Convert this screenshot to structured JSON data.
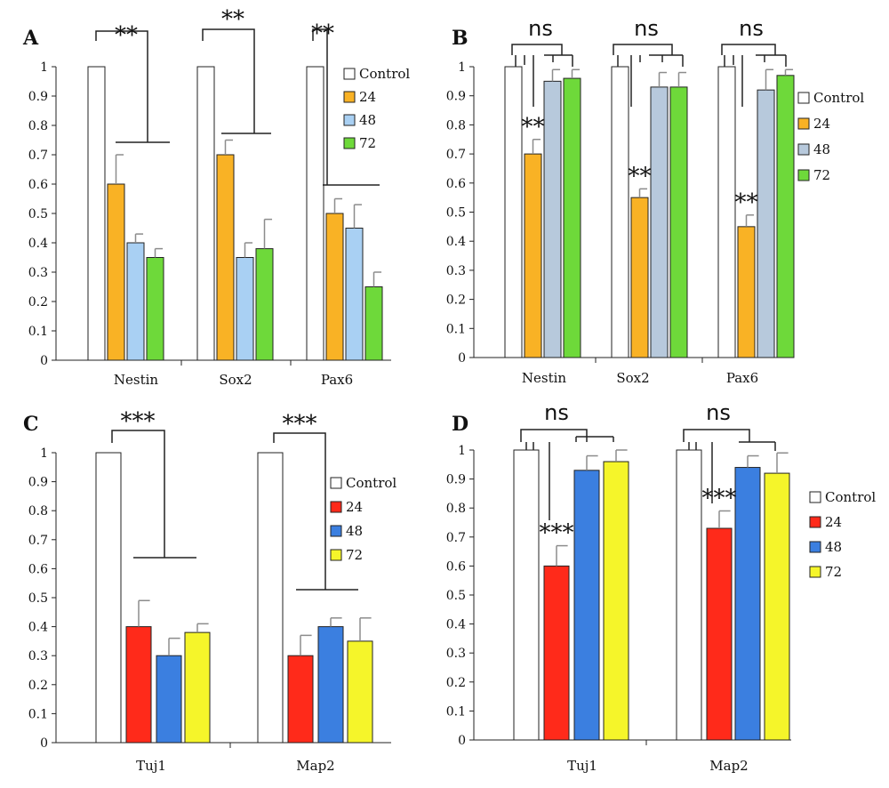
{
  "colors": {
    "control": "#ffffff",
    "AB_24": "#f9b225",
    "AB_48": "#a9d0f3",
    "B_48": "#b7c9dc",
    "AB_72": "#6ed93a",
    "CD_24": "#ff2a1a",
    "CD_48": "#3b7fe0",
    "CD_72": "#f5f52a",
    "bar_outline": "#222222",
    "error_bar": "#8c8c8c"
  },
  "chart_data": [
    {
      "panel": "A",
      "type": "bar",
      "categories": [
        "Nestin",
        "Sox2",
        "Pax6"
      ],
      "ylim": [
        0,
        1
      ],
      "yticks": [
        "0",
        "0.1",
        "0.2",
        "0.3",
        "0.4",
        "0.5",
        "0.6",
        "0.7",
        "0.8",
        "0.9",
        "1"
      ],
      "legend_position": "top-right",
      "series": [
        {
          "name": "Control",
          "values": [
            1.0,
            1.0,
            1.0
          ],
          "errors": [
            0,
            0,
            0
          ]
        },
        {
          "name": "24",
          "values": [
            0.6,
            0.7,
            0.5
          ],
          "errors": [
            0.1,
            0.05,
            0.05
          ]
        },
        {
          "name": "48",
          "values": [
            0.4,
            0.35,
            0.45
          ],
          "errors": [
            0.03,
            0.05,
            0.08
          ]
        },
        {
          "name": "72",
          "values": [
            0.35,
            0.38,
            0.25
          ],
          "errors": [
            0.03,
            0.1,
            0.05
          ]
        }
      ],
      "annotations": [
        "**",
        "**",
        "**"
      ]
    },
    {
      "panel": "B",
      "type": "bar",
      "categories": [
        "Nestin",
        "Sox2",
        "Pax6"
      ],
      "ylim": [
        0,
        1
      ],
      "yticks": [
        "0",
        "0.1",
        "0.2",
        "0.3",
        "0.4",
        "0.5",
        "0.6",
        "0.7",
        "0.8",
        "0.9",
        "1"
      ],
      "legend_position": "right",
      "series": [
        {
          "name": "Control",
          "values": [
            1.0,
            1.0,
            1.0
          ],
          "errors": [
            0,
            0,
            0
          ]
        },
        {
          "name": "24",
          "values": [
            0.7,
            0.55,
            0.45
          ],
          "errors": [
            0.05,
            0.03,
            0.04
          ]
        },
        {
          "name": "48",
          "values": [
            0.95,
            0.93,
            0.92
          ],
          "errors": [
            0.04,
            0.05,
            0.07
          ]
        },
        {
          "name": "72",
          "values": [
            0.96,
            0.93,
            0.97
          ],
          "errors": [
            0.03,
            0.05,
            0.02
          ]
        }
      ],
      "annotations": [
        "ns",
        "ns",
        "ns"
      ],
      "bar_annotations": [
        "**",
        "**",
        "**"
      ]
    },
    {
      "panel": "C",
      "type": "bar",
      "categories": [
        "Tuj1",
        "Map2"
      ],
      "ylim": [
        0,
        1
      ],
      "yticks": [
        "0",
        "0.1",
        "0.2",
        "0.3",
        "0.4",
        "0.5",
        "0.6",
        "0.7",
        "0.8",
        "0.9",
        "1"
      ],
      "legend_position": "right",
      "series": [
        {
          "name": "Control",
          "values": [
            1.0,
            1.0
          ],
          "errors": [
            0,
            0
          ]
        },
        {
          "name": "24",
          "values": [
            0.4,
            0.3
          ],
          "errors": [
            0.09,
            0.07
          ]
        },
        {
          "name": "48",
          "values": [
            0.3,
            0.4
          ],
          "errors": [
            0.06,
            0.03
          ]
        },
        {
          "name": "72",
          "values": [
            0.38,
            0.35
          ],
          "errors": [
            0.03,
            0.08
          ]
        }
      ],
      "annotations": [
        "***",
        "***"
      ]
    },
    {
      "panel": "D",
      "type": "bar",
      "categories": [
        "Tuj1",
        "Map2"
      ],
      "ylim": [
        0,
        1
      ],
      "yticks": [
        "0",
        "0.1",
        "0.2",
        "0.3",
        "0.4",
        "0.5",
        "0.6",
        "0.7",
        "0.8",
        "0.9",
        "1"
      ],
      "legend_position": "right",
      "series": [
        {
          "name": "Control",
          "values": [
            1.0,
            1.0
          ],
          "errors": [
            0,
            0
          ]
        },
        {
          "name": "24",
          "values": [
            0.6,
            0.73
          ],
          "errors": [
            0.07,
            0.06
          ]
        },
        {
          "name": "48",
          "values": [
            0.93,
            0.94
          ],
          "errors": [
            0.05,
            0.04
          ]
        },
        {
          "name": "72",
          "values": [
            0.96,
            0.92
          ],
          "errors": [
            0.04,
            0.07
          ]
        }
      ],
      "annotations": [
        "ns",
        "ns"
      ],
      "bar_annotations": [
        "***",
        "***"
      ]
    }
  ]
}
